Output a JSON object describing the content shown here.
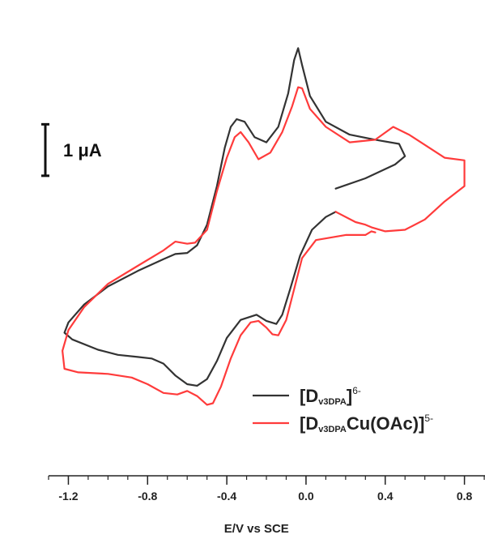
{
  "chart_data": {
    "type": "line",
    "title": "",
    "xlabel": "E/V vs  SCE",
    "ylabel": "",
    "xlim": [
      -1.3,
      0.93
    ],
    "ylim": [
      -3.8,
      4.2
    ],
    "x_ticks": [
      {
        "value": -1.2,
        "label": "-1.2"
      },
      {
        "value": -0.8,
        "label": "-0.8"
      },
      {
        "value": -0.4,
        "label": "-0.4"
      },
      {
        "value": 0.0,
        "label": "0.0"
      },
      {
        "value": 0.4,
        "label": "0.4"
      },
      {
        "value": 0.8,
        "label": "0.8"
      }
    ],
    "x_minor_step": 0.1,
    "grid": false,
    "legend_position": "bottom-right",
    "scale_bar": {
      "label": "1 μA",
      "value": 1.0,
      "y_center": 1.6
    },
    "series": [
      {
        "name_main": "D",
        "name_sub": "v3DPA",
        "name_tail": "",
        "name_sup": "6-",
        "color": "#333333",
        "points": [
          [
            0.15,
            0.85
          ],
          [
            0.3,
            1.05
          ],
          [
            0.45,
            1.32
          ],
          [
            0.5,
            1.48
          ],
          [
            0.47,
            1.72
          ],
          [
            0.35,
            1.8
          ],
          [
            0.22,
            1.9
          ],
          [
            0.1,
            2.15
          ],
          [
            0.02,
            2.65
          ],
          [
            -0.02,
            3.25
          ],
          [
            -0.04,
            3.58
          ],
          [
            -0.06,
            3.35
          ],
          [
            -0.09,
            2.7
          ],
          [
            -0.14,
            2.05
          ],
          [
            -0.2,
            1.75
          ],
          [
            -0.26,
            1.85
          ],
          [
            -0.31,
            2.15
          ],
          [
            -0.35,
            2.2
          ],
          [
            -0.38,
            2.05
          ],
          [
            -0.41,
            1.65
          ],
          [
            -0.45,
            0.9
          ],
          [
            -0.5,
            0.15
          ],
          [
            -0.55,
            -0.25
          ],
          [
            -0.6,
            -0.4
          ],
          [
            -0.66,
            -0.42
          ],
          [
            -0.72,
            -0.52
          ],
          [
            -0.85,
            -0.75
          ],
          [
            -1.0,
            -1.05
          ],
          [
            -1.12,
            -1.4
          ],
          [
            -1.2,
            -1.75
          ],
          [
            -1.22,
            -1.95
          ],
          [
            -1.18,
            -2.08
          ],
          [
            -1.05,
            -2.28
          ],
          [
            -0.95,
            -2.38
          ],
          [
            -0.85,
            -2.42
          ],
          [
            -0.78,
            -2.45
          ],
          [
            -0.72,
            -2.55
          ],
          [
            -0.66,
            -2.78
          ],
          [
            -0.6,
            -2.95
          ],
          [
            -0.55,
            -2.98
          ],
          [
            -0.5,
            -2.85
          ],
          [
            -0.45,
            -2.5
          ],
          [
            -0.4,
            -2.05
          ],
          [
            -0.33,
            -1.7
          ],
          [
            -0.25,
            -1.6
          ],
          [
            -0.2,
            -1.72
          ],
          [
            -0.15,
            -1.78
          ],
          [
            -0.12,
            -1.6
          ],
          [
            -0.08,
            -1.1
          ],
          [
            -0.03,
            -0.45
          ],
          [
            0.03,
            0.05
          ],
          [
            0.1,
            0.3
          ],
          [
            0.15,
            0.4
          ]
        ]
      },
      {
        "name_main": "D",
        "name_sub": "v3DPA",
        "name_tail": "Cu(OAc)",
        "name_sup": "5-",
        "color": "#ff3b3b",
        "points": [
          [
            0.15,
            0.4
          ],
          [
            0.25,
            0.2
          ],
          [
            0.3,
            0.15
          ],
          [
            0.33,
            0.1
          ],
          [
            0.4,
            0.02
          ],
          [
            0.5,
            0.05
          ],
          [
            0.6,
            0.25
          ],
          [
            0.7,
            0.6
          ],
          [
            0.8,
            0.9
          ],
          [
            0.8,
            1.4
          ],
          [
            0.7,
            1.45
          ],
          [
            0.52,
            1.9
          ],
          [
            0.44,
            2.05
          ],
          [
            0.35,
            1.8
          ],
          [
            0.22,
            1.75
          ],
          [
            0.1,
            2.05
          ],
          [
            0.02,
            2.4
          ],
          [
            -0.02,
            2.8
          ],
          [
            -0.04,
            2.82
          ],
          [
            -0.07,
            2.45
          ],
          [
            -0.12,
            1.95
          ],
          [
            -0.18,
            1.55
          ],
          [
            -0.24,
            1.42
          ],
          [
            -0.29,
            1.75
          ],
          [
            -0.33,
            1.95
          ],
          [
            -0.36,
            1.85
          ],
          [
            -0.4,
            1.45
          ],
          [
            -0.45,
            0.8
          ],
          [
            -0.5,
            0.05
          ],
          [
            -0.56,
            -0.2
          ],
          [
            -0.6,
            -0.22
          ],
          [
            -0.66,
            -0.18
          ],
          [
            -0.72,
            -0.35
          ],
          [
            -0.85,
            -0.65
          ],
          [
            -1.0,
            -1.0
          ],
          [
            -1.12,
            -1.45
          ],
          [
            -1.2,
            -1.9
          ],
          [
            -1.23,
            -2.3
          ],
          [
            -1.22,
            -2.65
          ],
          [
            -1.15,
            -2.72
          ],
          [
            -1.0,
            -2.75
          ],
          [
            -0.88,
            -2.82
          ],
          [
            -0.8,
            -2.95
          ],
          [
            -0.72,
            -3.12
          ],
          [
            -0.65,
            -3.15
          ],
          [
            -0.6,
            -3.08
          ],
          [
            -0.55,
            -3.18
          ],
          [
            -0.5,
            -3.35
          ],
          [
            -0.47,
            -3.32
          ],
          [
            -0.43,
            -3.0
          ],
          [
            -0.38,
            -2.45
          ],
          [
            -0.33,
            -2.0
          ],
          [
            -0.28,
            -1.75
          ],
          [
            -0.24,
            -1.72
          ],
          [
            -0.2,
            -1.85
          ],
          [
            -0.17,
            -1.98
          ],
          [
            -0.14,
            -2.0
          ],
          [
            -0.1,
            -1.7
          ],
          [
            -0.06,
            -1.1
          ],
          [
            -0.02,
            -0.5
          ],
          [
            0.05,
            -0.15
          ],
          [
            0.2,
            -0.05
          ],
          [
            0.3,
            -0.05
          ],
          [
            0.33,
            0.02
          ],
          [
            0.35,
            0.0
          ]
        ]
      }
    ]
  }
}
